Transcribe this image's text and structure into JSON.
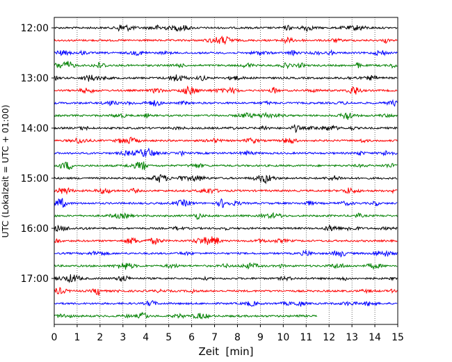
{
  "chart_data": {
    "type": "line",
    "title": "",
    "xlabel": "Zeit  [min]",
    "ylabel": "UTC (Lokalzeit = UTC + 01:00)",
    "xlim": [
      0,
      15
    ],
    "x_ticks": [
      0,
      1,
      2,
      3,
      4,
      5,
      6,
      7,
      8,
      9,
      10,
      11,
      12,
      13,
      14,
      15
    ],
    "x_grid": "dotted vertical lines at every minute",
    "y_tick_labels": [
      "12:00",
      "13:00",
      "14:00",
      "15:00",
      "16:00",
      "17:00"
    ],
    "traces_per_hour": 4,
    "trace_minutes": 15,
    "color_cycle": [
      "#000000",
      "#ff0000",
      "#0000ff",
      "#008000"
    ],
    "traces": [
      {
        "start": "12:00",
        "end_min": 15
      },
      {
        "start": "12:15",
        "end_min": 15
      },
      {
        "start": "12:30",
        "end_min": 15
      },
      {
        "start": "12:45",
        "end_min": 15
      },
      {
        "start": "13:00",
        "end_min": 15
      },
      {
        "start": "13:15",
        "end_min": 15
      },
      {
        "start": "13:30",
        "end_min": 15
      },
      {
        "start": "13:45",
        "end_min": 15
      },
      {
        "start": "14:00",
        "end_min": 15
      },
      {
        "start": "14:15",
        "end_min": 15
      },
      {
        "start": "14:30",
        "end_min": 15
      },
      {
        "start": "14:45",
        "end_min": 15
      },
      {
        "start": "15:00",
        "end_min": 15
      },
      {
        "start": "15:15",
        "end_min": 15
      },
      {
        "start": "15:30",
        "end_min": 15
      },
      {
        "start": "15:45",
        "end_min": 15
      },
      {
        "start": "16:00",
        "end_min": 15
      },
      {
        "start": "16:15",
        "end_min": 15
      },
      {
        "start": "16:30",
        "end_min": 15
      },
      {
        "start": "16:45",
        "end_min": 15
      },
      {
        "start": "17:00",
        "end_min": 15
      },
      {
        "start": "17:15",
        "end_min": 15
      },
      {
        "start": "17:30",
        "end_min": 15
      },
      {
        "start": "17:45",
        "end_min": 11.5
      }
    ]
  }
}
